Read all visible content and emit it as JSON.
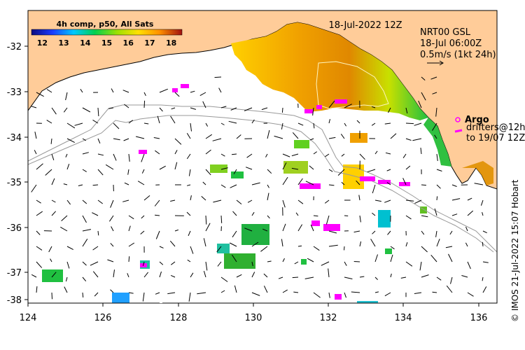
{
  "map": {
    "date_title": "18-Jul-2022 12Z",
    "colorbar": {
      "title": "4h comp, p50, All Sats",
      "ticks": [
        "12",
        "13",
        "14",
        "15",
        "16",
        "17",
        "18"
      ],
      "range": [
        11.5,
        18.5
      ]
    },
    "current_box": {
      "line1": "NRT00 GSL",
      "line2": "18-Jul 06:00Z",
      "line3": "0.5m/s (1kt 24h)"
    },
    "legend": {
      "argo": "Argo",
      "drifters_line1": "drifters@12h",
      "drifters_line2": "to 19/07 12Z"
    },
    "credit": "© IMOS 21-Jul-2022 15:07 Hobart",
    "x_ticks": [
      "124",
      "126",
      "128",
      "130",
      "132",
      "134",
      "136"
    ],
    "y_ticks": [
      "-32",
      "-33",
      "-34",
      "-35",
      "-36",
      "-37",
      "-38"
    ],
    "colors": {
      "land": "#ffcc99",
      "ocean": "#ffffff",
      "argo": "#ff00ff",
      "arrow": "#000000",
      "bathymetry": "#999999"
    }
  }
}
